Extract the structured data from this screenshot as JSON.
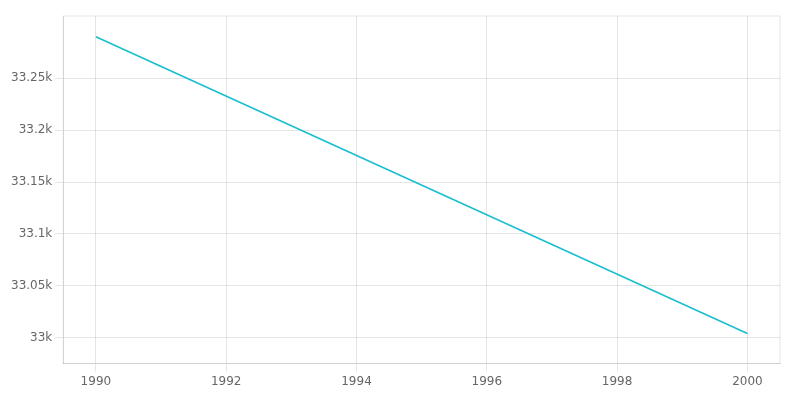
{
  "chart_data": {
    "type": "line",
    "x": [
      1990,
      2000
    ],
    "values": [
      33290,
      33004
    ],
    "color": "#17becf",
    "xlim": [
      1989.5,
      2000.5
    ],
    "xticks": [
      1990,
      1992,
      1994,
      1996,
      1998,
      2000
    ],
    "ylim": [
      32975,
      33310
    ],
    "yticks": [
      {
        "value": 33000,
        "label": "33k"
      },
      {
        "value": 33050,
        "label": "33.05k"
      },
      {
        "value": 33100,
        "label": "33.1k"
      },
      {
        "value": 33150,
        "label": "33.15k"
      },
      {
        "value": 33200,
        "label": "33.2k"
      },
      {
        "value": 33250,
        "label": "33.25k"
      }
    ],
    "grid": true
  }
}
